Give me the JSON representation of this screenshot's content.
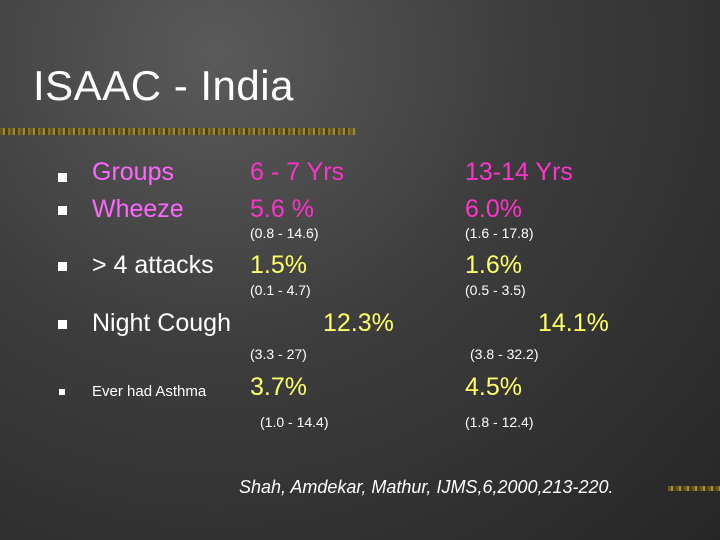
{
  "title": "ISAAC - India",
  "header": {
    "groups_label": "Groups",
    "col1": "6 - 7 Yrs",
    "col2": "13-14 Yrs"
  },
  "rows": [
    {
      "label": "Wheeze",
      "v1": "5.6 %",
      "ci1": "(0.8 - 14.6)",
      "v2": "6.0%",
      "ci2": "(1.6 - 17.8)"
    },
    {
      "label": "> 4 attacks",
      "v1": "1.5%",
      "ci1": "(0.1 - 4.7)",
      "v2": "1.6%",
      "ci2": "(0.5 - 3.5)"
    },
    {
      "label": "Night Cough",
      "v1": "12.3%",
      "ci1": "(3.3 - 27)",
      "v2": "14.1%",
      "ci2": "(3.8 - 32.2)"
    },
    {
      "label": "Ever had Asthma",
      "v1": "3.7%",
      "ci1": "(1.0 - 14.4)",
      "v2": "4.5%",
      "ci2": "(1.8 - 12.4)"
    }
  ],
  "citation": "Shah, Amdekar, Mathur, IJMS,6,2000,213-220."
}
